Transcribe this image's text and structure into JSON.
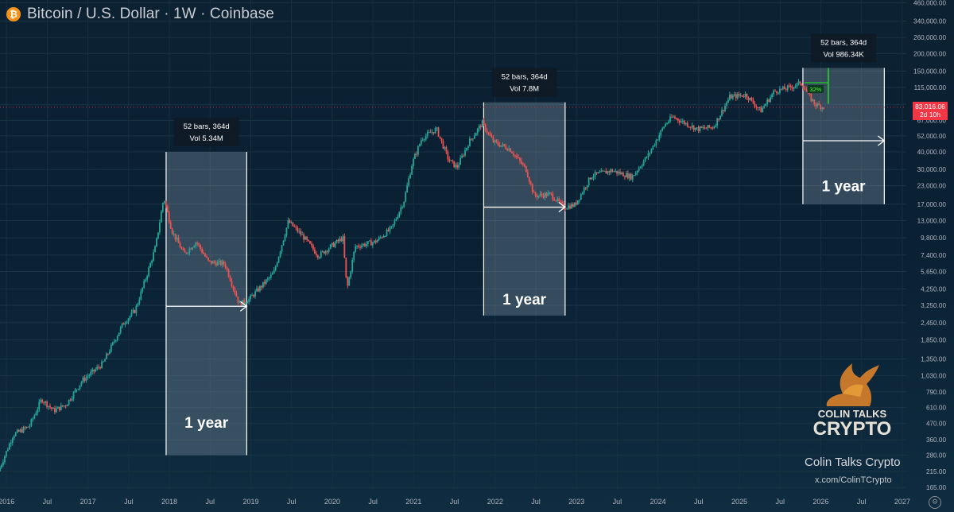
{
  "header": {
    "title": "Bitcoin / U.S. Dollar · 1W · Coinbase",
    "icon": "bitcoin-icon",
    "icon_glyph": "₿"
  },
  "price_label": {
    "price": "83,016.06",
    "countdown": "2d 10h",
    "color": "#f23645"
  },
  "watermark": {
    "brand_line1": "COLIN TALKS",
    "brand_line2": "CRYPTO",
    "name": "Colin Talks Crypto",
    "link": "x.com/ColinTCrypto",
    "logo": "bull-logo"
  },
  "chart_data": {
    "type": "candlestick",
    "title": "Bitcoin / U.S. Dollar · 1W · Coinbase",
    "scale": "log",
    "x_ticks": [
      "2016",
      "Jul",
      "2017",
      "Jul",
      "2018",
      "Jul",
      "2019",
      "Jul",
      "2020",
      "Jul",
      "2021",
      "Jul",
      "2022",
      "Jul",
      "2023",
      "Jul",
      "2024",
      "Jul",
      "2025",
      "Jul",
      "2026",
      "Jul",
      "2027"
    ],
    "x_tick_years": [
      2016,
      2016.5,
      2017,
      2017.5,
      2018,
      2018.5,
      2019,
      2019.5,
      2020,
      2020.5,
      2021,
      2021.5,
      2022,
      2022.5,
      2023,
      2023.5,
      2024,
      2024.5,
      2025,
      2025.5,
      2026,
      2026.5,
      2027
    ],
    "y_ticks": [
      "460,000.00",
      "340,000.00",
      "260,000.00",
      "200,000.00",
      "150,000.00",
      "115,000.00",
      "87,000.00",
      "67,000.00",
      "52,000.00",
      "40,000.00",
      "30,000.00",
      "23,000.00",
      "17,000.00",
      "13,000.00",
      "9,800.00",
      "7,400.00",
      "5,650.00",
      "4,250.00",
      "3,250.00",
      "2,450.00",
      "1,850.00",
      "1,350.00",
      "1,030.00",
      "790.00",
      "610.00",
      "470.00",
      "360.00",
      "280.00",
      "215.00",
      "165.00"
    ],
    "y_tick_values": [
      460000,
      340000,
      260000,
      200000,
      150000,
      115000,
      87000,
      67000,
      52000,
      40000,
      30000,
      23000,
      17000,
      13000,
      9800,
      7400,
      5650,
      4250,
      3250,
      2450,
      1850,
      1350,
      1030,
      790,
      610,
      470,
      360,
      280,
      215,
      165
    ],
    "ylim": [
      155,
      480000
    ],
    "xlim": [
      2015.92,
      2027.05
    ],
    "last_price": 83016.06,
    "colors": {
      "up": "#26a69a",
      "down": "#ef5350",
      "arrow": "#ffffff",
      "box": "#8fa6b4"
    },
    "price_path": [
      [
        2015.92,
        215
      ],
      [
        2016.1,
        390
      ],
      [
        2016.3,
        450
      ],
      [
        2016.45,
        700
      ],
      [
        2016.6,
        580
      ],
      [
        2016.75,
        640
      ],
      [
        2016.95,
        950
      ],
      [
        2017.2,
        1250
      ],
      [
        2017.45,
        2400
      ],
      [
        2017.6,
        3000
      ],
      [
        2017.75,
        5500
      ],
      [
        2017.85,
        8500
      ],
      [
        2017.95,
        19000
      ],
      [
        2018.05,
        11000
      ],
      [
        2018.2,
        7500
      ],
      [
        2018.35,
        9200
      ],
      [
        2018.5,
        6600
      ],
      [
        2018.7,
        6400
      ],
      [
        2018.88,
        3300
      ],
      [
        2019.0,
        3600
      ],
      [
        2019.3,
        5500
      ],
      [
        2019.48,
        12800
      ],
      [
        2019.65,
        10200
      ],
      [
        2019.85,
        7300
      ],
      [
        2020.0,
        8500
      ],
      [
        2020.15,
        9800
      ],
      [
        2020.2,
        4200
      ],
      [
        2020.3,
        8500
      ],
      [
        2020.55,
        9200
      ],
      [
        2020.75,
        11500
      ],
      [
        2020.9,
        18000
      ],
      [
        2021.0,
        33000
      ],
      [
        2021.12,
        50000
      ],
      [
        2021.3,
        58000
      ],
      [
        2021.45,
        35000
      ],
      [
        2021.55,
        31000
      ],
      [
        2021.7,
        47000
      ],
      [
        2021.86,
        64000
      ],
      [
        2022.0,
        47000
      ],
      [
        2022.2,
        42000
      ],
      [
        2022.4,
        30000
      ],
      [
        2022.5,
        19500
      ],
      [
        2022.7,
        20000
      ],
      [
        2022.86,
        16200
      ],
      [
        2023.0,
        16800
      ],
      [
        2023.2,
        27000
      ],
      [
        2023.45,
        29500
      ],
      [
        2023.7,
        26500
      ],
      [
        2023.9,
        38000
      ],
      [
        2024.1,
        62000
      ],
      [
        2024.2,
        71000
      ],
      [
        2024.5,
        58000
      ],
      [
        2024.7,
        60000
      ],
      [
        2024.9,
        98000
      ],
      [
        2025.1,
        102000
      ],
      [
        2025.28,
        78000
      ],
      [
        2025.45,
        108000
      ],
      [
        2025.65,
        115000
      ],
      [
        2025.78,
        124000
      ],
      [
        2025.85,
        105000
      ],
      [
        2025.95,
        87000
      ],
      [
        2026.05,
        83016
      ]
    ],
    "annotations": [
      {
        "x_start": 2017.96,
        "x_end": 2018.95,
        "y_top": 40000,
        "y_bottom": 280,
        "arrow_y": 3200,
        "label": "1 year",
        "label_y": 440,
        "tooltip_bars": "52 bars, 364d",
        "tooltip_vol": "Vol 5.34M"
      },
      {
        "x_start": 2021.86,
        "x_end": 2022.86,
        "y_top": 90000,
        "y_bottom": 2750,
        "arrow_y": 16200,
        "label": "1 year",
        "label_y": 3300,
        "tooltip_bars": "52 bars, 364d",
        "tooltip_vol": "Vol 7.8M"
      },
      {
        "x_start": 2025.78,
        "x_end": 2026.78,
        "y_top": 158000,
        "y_bottom": 17000,
        "arrow_y": 48000,
        "label": "1 year",
        "label_y": 21000,
        "tooltip_bars": "52 bars, 364d",
        "tooltip_vol": "Vol 986.34K",
        "pct_label": "32%"
      }
    ]
  }
}
